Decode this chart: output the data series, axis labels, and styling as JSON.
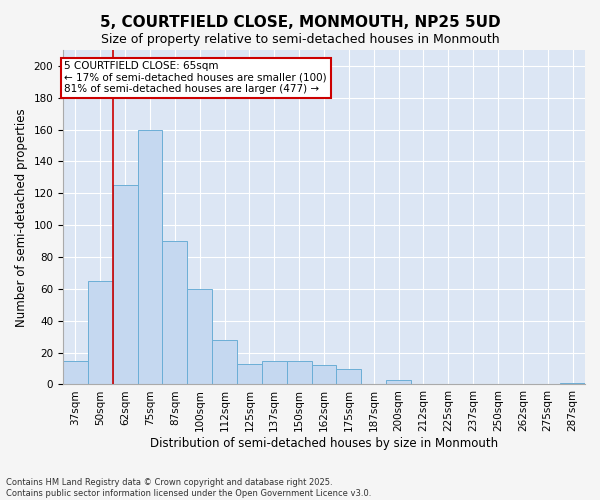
{
  "title": "5, COURTFIELD CLOSE, MONMOUTH, NP25 5UD",
  "subtitle": "Size of property relative to semi-detached houses in Monmouth",
  "xlabel": "Distribution of semi-detached houses by size in Monmouth",
  "ylabel": "Number of semi-detached properties",
  "categories": [
    "37sqm",
    "50sqm",
    "62sqm",
    "75sqm",
    "87sqm",
    "100sqm",
    "112sqm",
    "125sqm",
    "137sqm",
    "150sqm",
    "162sqm",
    "175sqm",
    "187sqm",
    "200sqm",
    "212sqm",
    "225sqm",
    "237sqm",
    "250sqm",
    "262sqm",
    "275sqm",
    "287sqm"
  ],
  "values": [
    15,
    65,
    125,
    160,
    90,
    60,
    28,
    13,
    15,
    15,
    12,
    10,
    0,
    3,
    0,
    0,
    0,
    0,
    0,
    0,
    1
  ],
  "bar_color": "#c5d8f0",
  "bar_edgecolor": "#6baed6",
  "background_color": "#dce6f4",
  "grid_color": "#ffffff",
  "property_value": "65sqm",
  "pct_smaller": 17,
  "count_smaller": 100,
  "pct_larger": 81,
  "count_larger": 477,
  "annotation_box_color": "#cc0000",
  "property_line_index": 1.5,
  "ylim": [
    0,
    210
  ],
  "yticks": [
    0,
    20,
    40,
    60,
    80,
    100,
    120,
    140,
    160,
    180,
    200
  ],
  "footnote": "Contains HM Land Registry data © Crown copyright and database right 2025.\nContains public sector information licensed under the Open Government Licence v3.0.",
  "title_fontsize": 11,
  "subtitle_fontsize": 9,
  "label_fontsize": 8.5,
  "tick_fontsize": 7.5,
  "annotation_fontsize": 7.5,
  "fig_bg": "#f5f5f5"
}
